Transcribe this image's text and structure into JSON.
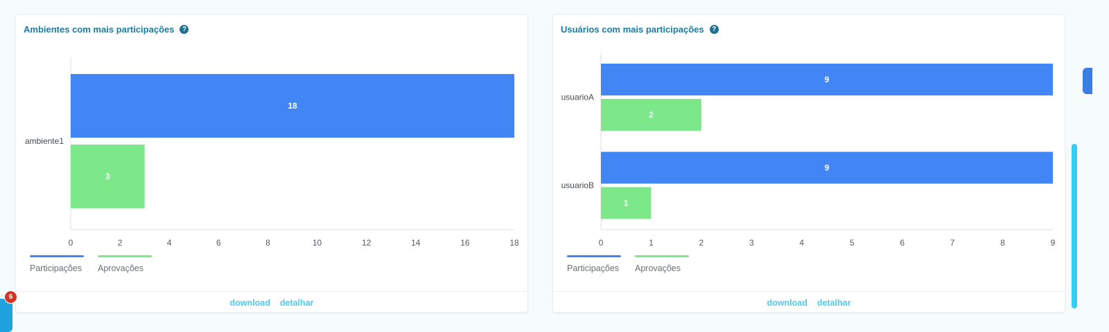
{
  "colors": {
    "participacoes": "#4285f4",
    "aprovacoes": "#7ce88a",
    "title": "#1a7ba0",
    "link": "#4fc9ee"
  },
  "cards": [
    {
      "title": "Ambientes com mais participações",
      "help_icon": "question-circle-icon",
      "footer": {
        "download": "download",
        "detail": "detalhar"
      }
    },
    {
      "title": "Usuários com mais participações",
      "help_icon": "question-circle-icon",
      "footer": {
        "download": "download",
        "detail": "detalhar"
      }
    }
  ],
  "notification_badge": "6",
  "chart_data": [
    {
      "type": "bar",
      "orientation": "horizontal",
      "title": "Ambientes com mais participações",
      "categories": [
        "ambiente1"
      ],
      "series": [
        {
          "name": "Participações",
          "values": [
            18
          ],
          "color": "#4285f4"
        },
        {
          "name": "Aprovações",
          "values": [
            3
          ],
          "color": "#7ce88a"
        }
      ],
      "xlim": [
        0,
        18
      ],
      "xticks": [
        0,
        2,
        4,
        6,
        8,
        10,
        12,
        14,
        16,
        18
      ],
      "legend": "bottom-left",
      "grid": false
    },
    {
      "type": "bar",
      "orientation": "horizontal",
      "title": "Usuários com mais participações",
      "categories": [
        "usuarioA",
        "usuarioB"
      ],
      "series": [
        {
          "name": "Participações",
          "values": [
            9,
            9
          ],
          "color": "#4285f4"
        },
        {
          "name": "Aprovações",
          "values": [
            2,
            1
          ],
          "color": "#7ce88a"
        }
      ],
      "xlim": [
        0,
        9
      ],
      "xticks": [
        0,
        1,
        2,
        3,
        4,
        5,
        6,
        7,
        8,
        9
      ],
      "legend": "bottom-left",
      "grid": false
    }
  ]
}
